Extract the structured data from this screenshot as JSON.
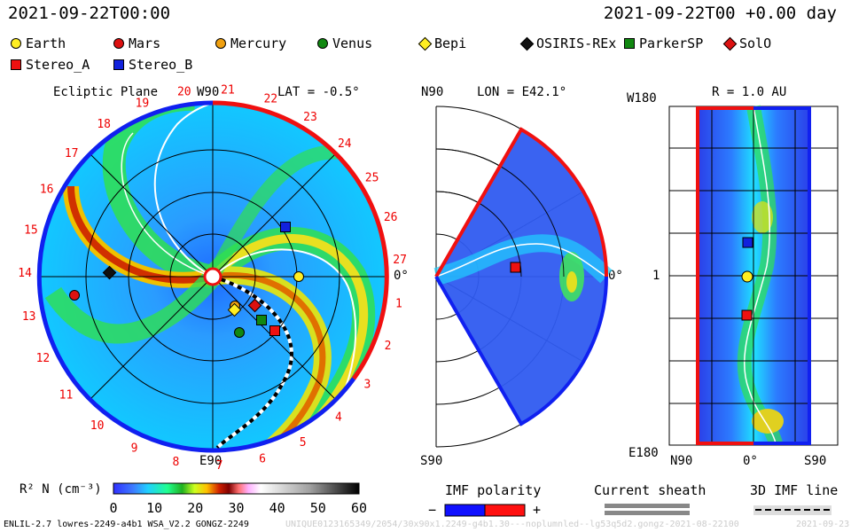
{
  "header": {
    "datetime_left": "2021-09-22T00:00",
    "datetime_right": "2021-09-22T00 +0.00 day"
  },
  "legend": [
    {
      "label": "Earth",
      "shape": "circle",
      "color": "#ffee22"
    },
    {
      "label": "Mars",
      "shape": "circle",
      "color": "#dd1111"
    },
    {
      "label": "Mercury",
      "shape": "circle",
      "color": "#f0a010"
    },
    {
      "label": "Venus",
      "shape": "circle",
      "color": "#118811"
    },
    {
      "label": "Bepi",
      "shape": "diamond",
      "color": "#ffee22"
    },
    {
      "label": "OSIRIS-REx",
      "shape": "diamond",
      "color": "#111111"
    },
    {
      "label": "ParkerSP",
      "shape": "square",
      "color": "#118811"
    },
    {
      "label": "SolO",
      "shape": "diamond",
      "color": "#dd1111"
    },
    {
      "label": "Stereo_A",
      "shape": "square",
      "color": "#ee1111"
    },
    {
      "label": "Stereo_B",
      "shape": "square",
      "color": "#1122dd"
    }
  ],
  "ecliptic": {
    "title": "Ecliptic Plane",
    "lat_label": "LAT = -0.5°",
    "top_label": "W90",
    "bottom_label": "E90",
    "right_label": "0°",
    "carrington_labels": [
      "1",
      "2",
      "3",
      "4",
      "5",
      "6",
      "7",
      "8",
      "9",
      "10",
      "11",
      "12",
      "13",
      "14",
      "15",
      "16",
      "17",
      "18",
      "19",
      "20",
      "21",
      "22",
      "23",
      "24",
      "25",
      "26",
      "27"
    ]
  },
  "meridional": {
    "top_label": "N90",
    "bottom_label": "S90",
    "lon_label": "LON = E42.1°",
    "right_label": "0°"
  },
  "radial": {
    "title": "R = 1.0 AU",
    "top_label": "W180",
    "bottom_label": "E180",
    "left_tick": "1",
    "x_labels": [
      "N90",
      "0°",
      "S90"
    ]
  },
  "colorbar": {
    "label": "R² N (cm⁻³)",
    "ticks": [
      "0",
      "10",
      "20",
      "30",
      "40",
      "50",
      "60"
    ]
  },
  "imf_polarity": {
    "title": "IMF polarity",
    "minus": "−",
    "plus": "+"
  },
  "current_sheath": {
    "title": "Current sheath"
  },
  "imf_line": {
    "title": "3D IMF line"
  },
  "footer": {
    "model": "ENLIL-2.7 lowres-2249-a4b1 WSA_V2.2 GONGZ-2249",
    "run_id": "UNIQUE0123165349/2054/30x90x1.2249-g4b1.30---noplumnled--lg53q5d2.gongz-2021-08-22100",
    "date_tail": "2021-09-23"
  },
  "colors": {
    "imf_negative": "#1010ff",
    "imf_positive": "#ff1010",
    "background_density": "#12c8ff"
  }
}
